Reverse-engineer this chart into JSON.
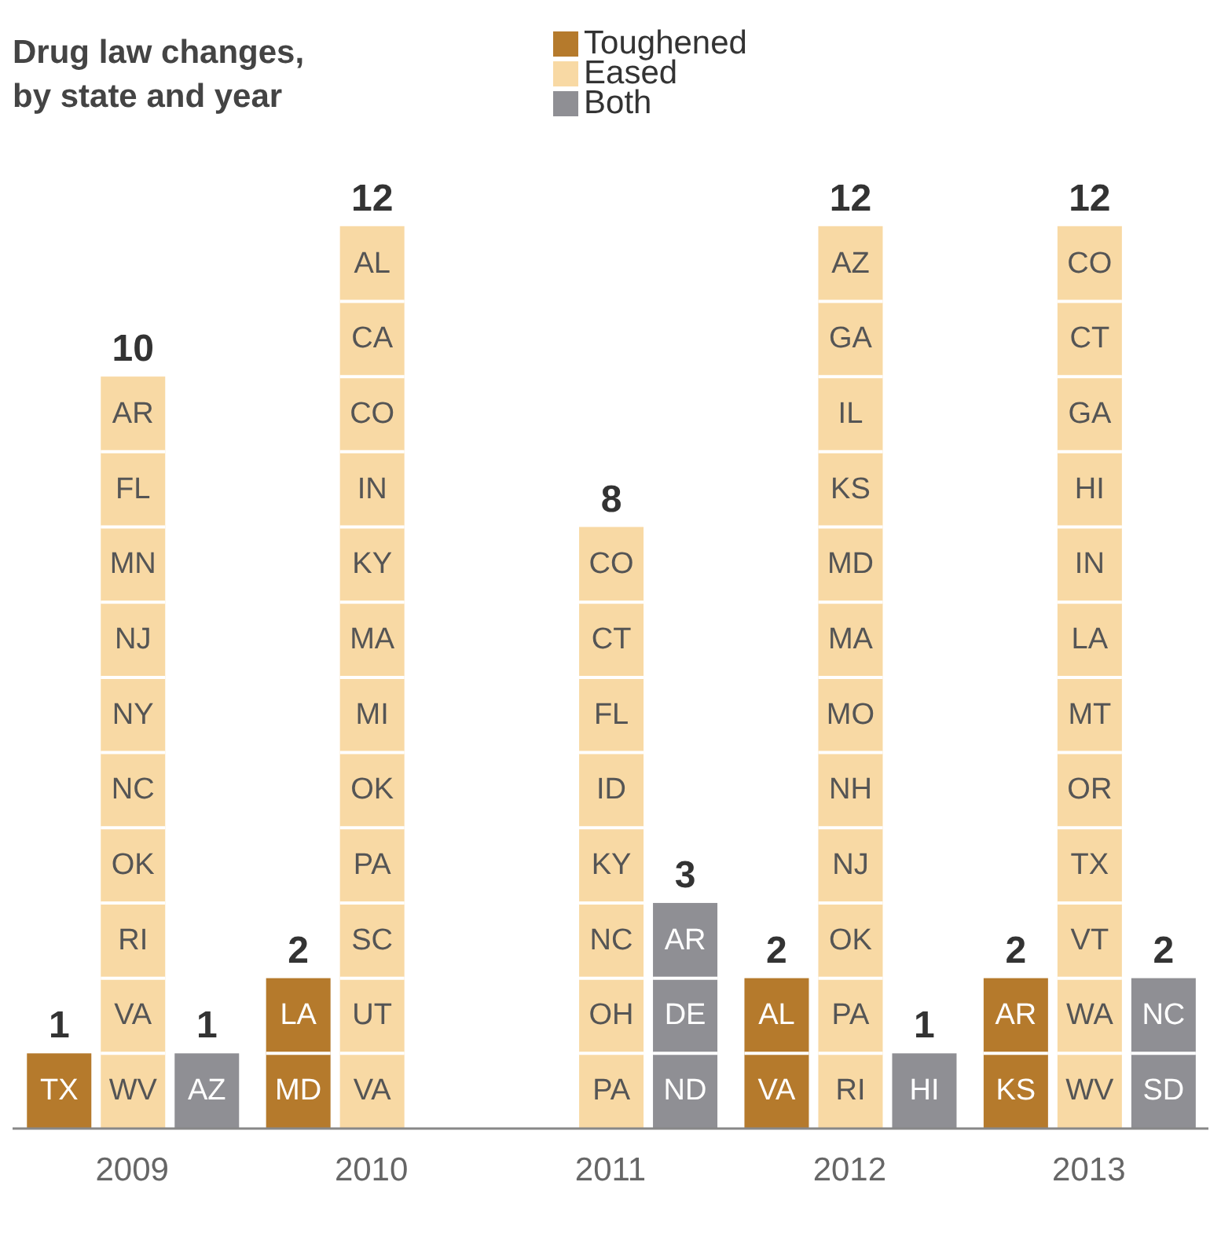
{
  "chart_data": {
    "type": "bar",
    "title": "Drug law changes,\nby state and year",
    "categories": [
      "2009",
      "2010",
      "2011",
      "2012",
      "2013"
    ],
    "series": [
      {
        "name": "Toughened",
        "color": "#b57a2c",
        "values": [
          1,
          2,
          null,
          2,
          2
        ]
      },
      {
        "name": "Eased",
        "color": "#f8d9a4",
        "values": [
          10,
          12,
          8,
          12,
          12
        ]
      },
      {
        "name": "Both",
        "color": "#8f8f94",
        "values": [
          1,
          null,
          3,
          1,
          2
        ]
      }
    ],
    "data_labels": true,
    "legend": "top",
    "grid": false,
    "annotations": [
      "TX",
      "WV",
      "VA",
      "RI",
      "OK",
      "NC",
      "NY",
      "NJ",
      "MN",
      "FL",
      "AR",
      "AZ",
      "MD",
      "LA",
      "VA",
      "UT",
      "SC",
      "PA",
      "OK",
      "MI",
      "MA",
      "KY",
      "IN",
      "CO",
      "CA",
      "AL",
      "PA",
      "OH",
      "NC",
      "KY",
      "ID",
      "FL",
      "CT",
      "CO",
      "ND",
      "DE",
      "AR",
      "VA",
      "AL",
      "RI",
      "PA",
      "OK",
      "NJ",
      "NH",
      "MO",
      "MA",
      "MD",
      "KS",
      "IL",
      "GA",
      "AZ",
      "HI",
      "KS",
      "AR",
      "WV",
      "WA",
      "VT",
      "TX",
      "OR",
      "MT",
      "LA",
      "IN",
      "HI",
      "GA",
      "CT",
      "CO",
      "SD",
      "NC"
    ]
  }
}
